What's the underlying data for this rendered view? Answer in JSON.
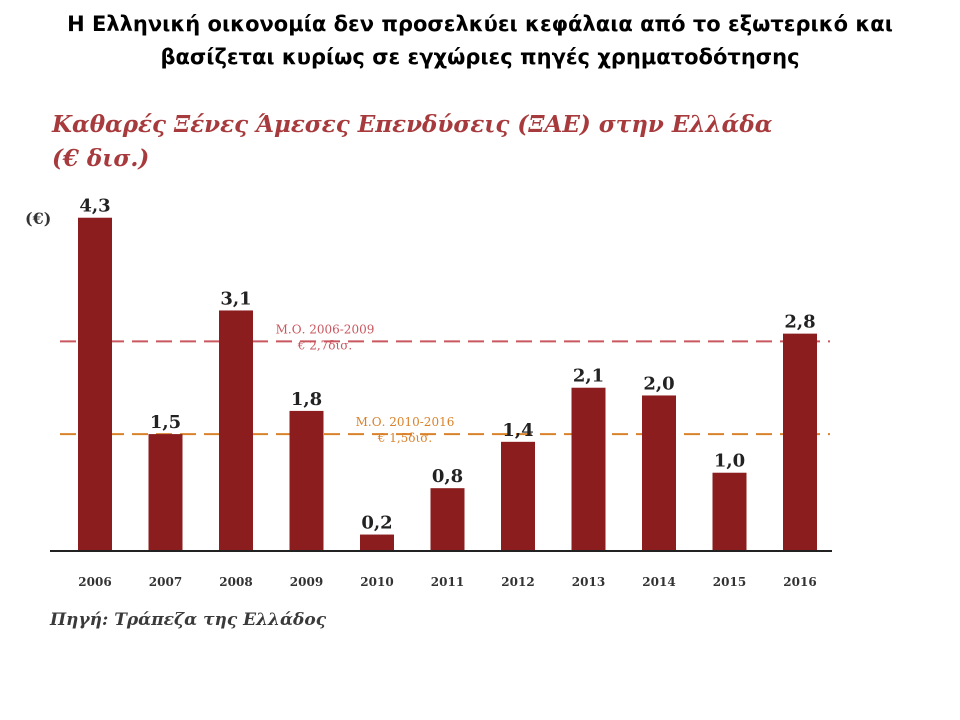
{
  "slide": {
    "title_line1": "Η Ελληνική οικονομία δεν προσελκύει κεφάλαια από το εξωτερικό και",
    "title_line2": "βασίζεται κυρίως σε εγχώριες πηγές χρηματοδότησης"
  },
  "colors": {
    "bar": "#8b1d1f",
    "title_text": "#a73a3c",
    "ref_line_1": "#c9575f",
    "ref_line_2": "#d9822b"
  },
  "chart_data": {
    "type": "bar",
    "title_line1": "Καθαρές Ξένες Άμεσες Επενδύσεις (ΞΑΕ) στην Ελλάδα",
    "title_line2": "(€ δισ.)",
    "xlabel": "",
    "ylabel": "(€)",
    "categories": [
      "2006",
      "2007",
      "2008",
      "2009",
      "2010",
      "2011",
      "2012",
      "2013",
      "2014",
      "2015",
      "2016"
    ],
    "values": [
      4.3,
      1.5,
      3.1,
      1.8,
      0.2,
      0.8,
      1.4,
      2.1,
      2.0,
      1.0,
      2.8
    ],
    "value_labels": [
      "4,3",
      "1,5",
      "3,1",
      "1,8",
      "0,2",
      "0,8",
      "1,4",
      "2,1",
      "2,0",
      "1,0",
      "2,8"
    ],
    "ylim": [
      0,
      4.4
    ],
    "grid": false,
    "reference_lines": [
      {
        "label": "Μ.Ο. 2006-2009",
        "sublabel": "€ 2,7δισ.",
        "value": 2.7,
        "color": "#c9575f"
      },
      {
        "label": "Μ.Ο. 2010-2016",
        "sublabel": "€ 1,5δισ.",
        "value": 1.5,
        "color": "#d9822b"
      }
    ],
    "source": "Πηγή: Τράπεζα της Ελλάδος"
  }
}
